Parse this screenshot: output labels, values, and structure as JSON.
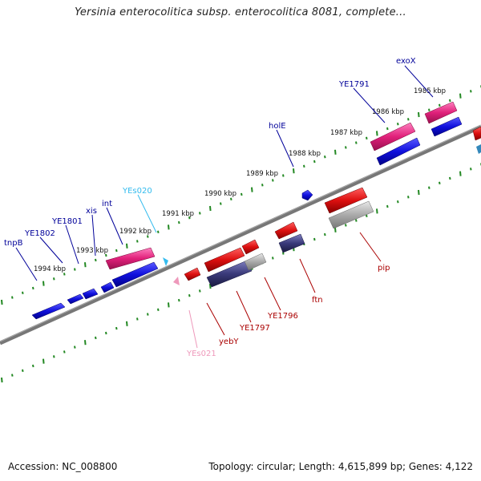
{
  "header": {
    "title": "Yersinia enterocolitica subsp. enterocolitica 8081, complete..."
  },
  "footer": {
    "accession": "Accession: NC_008800",
    "topology": "Topology: circular; Length: 4,615,899 bp; Genes: 4,122"
  },
  "colors": {
    "forward_gene": "#1010dd",
    "reverse_gene": "#dd1010",
    "forward_label": "#000099",
    "reverse_label": "#aa0000",
    "rna_forward": "#e0207a",
    "rna_reverse": "#3a3a7a",
    "pseudo": "#aaaaaa",
    "trna_forward_label": "#33bbee",
    "trna_reverse_label": "#ee99bb",
    "backbone": "#777777",
    "tick": "#228822"
  },
  "ruler": {
    "ticks": [
      "1985 kbp",
      "1986 kbp",
      "1987 kbp",
      "1988 kbp",
      "1989 kbp",
      "1990 kbp",
      "1991 kbp",
      "1992 kbp",
      "1993 kbp",
      "1994 kbp"
    ]
  },
  "genes": {
    "forward": [
      "exoX",
      "YE1791",
      "holE",
      "YEs020",
      "int",
      "xis",
      "YE1801",
      "YE1802",
      "tnpB"
    ],
    "reverse": [
      "pip",
      "ftn",
      "YE1796",
      "YE1797",
      "yebY",
      "YEs021"
    ]
  }
}
